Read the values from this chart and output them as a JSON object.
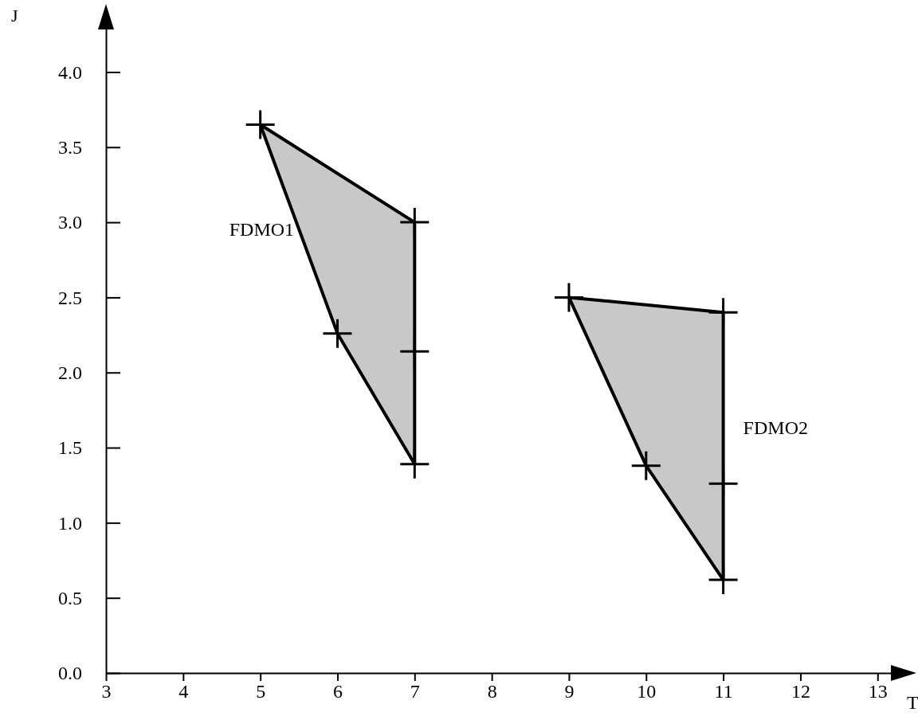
{
  "chart_data": {
    "type": "area",
    "xlabel": "T",
    "ylabel": "J",
    "xlim": [
      3,
      13.4
    ],
    "ylim": [
      0,
      4.4
    ],
    "xticks": [
      3,
      4,
      5,
      6,
      7,
      8,
      9,
      10,
      11,
      12,
      13
    ],
    "yticks": [
      {
        "value": 0,
        "label": "0.0"
      },
      {
        "value": 0.5,
        "label": "0.5"
      },
      {
        "value": 1,
        "label": "1.0"
      },
      {
        "value": 1.5,
        "label": "1.5"
      },
      {
        "value": 2,
        "label": "2.0"
      },
      {
        "value": 2.5,
        "label": "2.5"
      },
      {
        "value": 3,
        "label": "3.0"
      },
      {
        "value": 3.5,
        "label": "3.5"
      },
      {
        "value": 4,
        "label": "4.0"
      }
    ],
    "grid": false,
    "marker": "cross",
    "series": [
      {
        "name": "FDMO1",
        "color": "#c8c8c8",
        "x": [
          5,
          7,
          7,
          7,
          6
        ],
        "values": [
          3.65,
          3.0,
          2.14,
          1.39,
          2.26
        ]
      },
      {
        "name": "FDMO2",
        "color": "#c8c8c8",
        "x": [
          9,
          11,
          11,
          11,
          10
        ],
        "values": [
          2.5,
          2.4,
          1.26,
          0.62,
          1.38
        ]
      }
    ]
  }
}
